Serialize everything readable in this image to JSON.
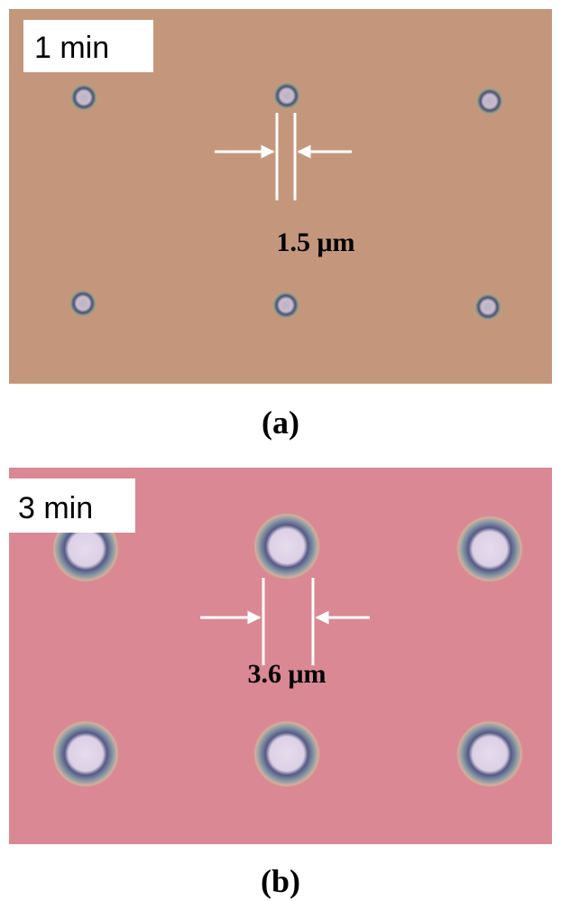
{
  "panels": [
    {
      "time_label": "1 min",
      "measurement": "1.5 μm",
      "caption": "(a)"
    },
    {
      "time_label": "3 min",
      "measurement": "3.6 μm",
      "caption": "(b)"
    }
  ]
}
